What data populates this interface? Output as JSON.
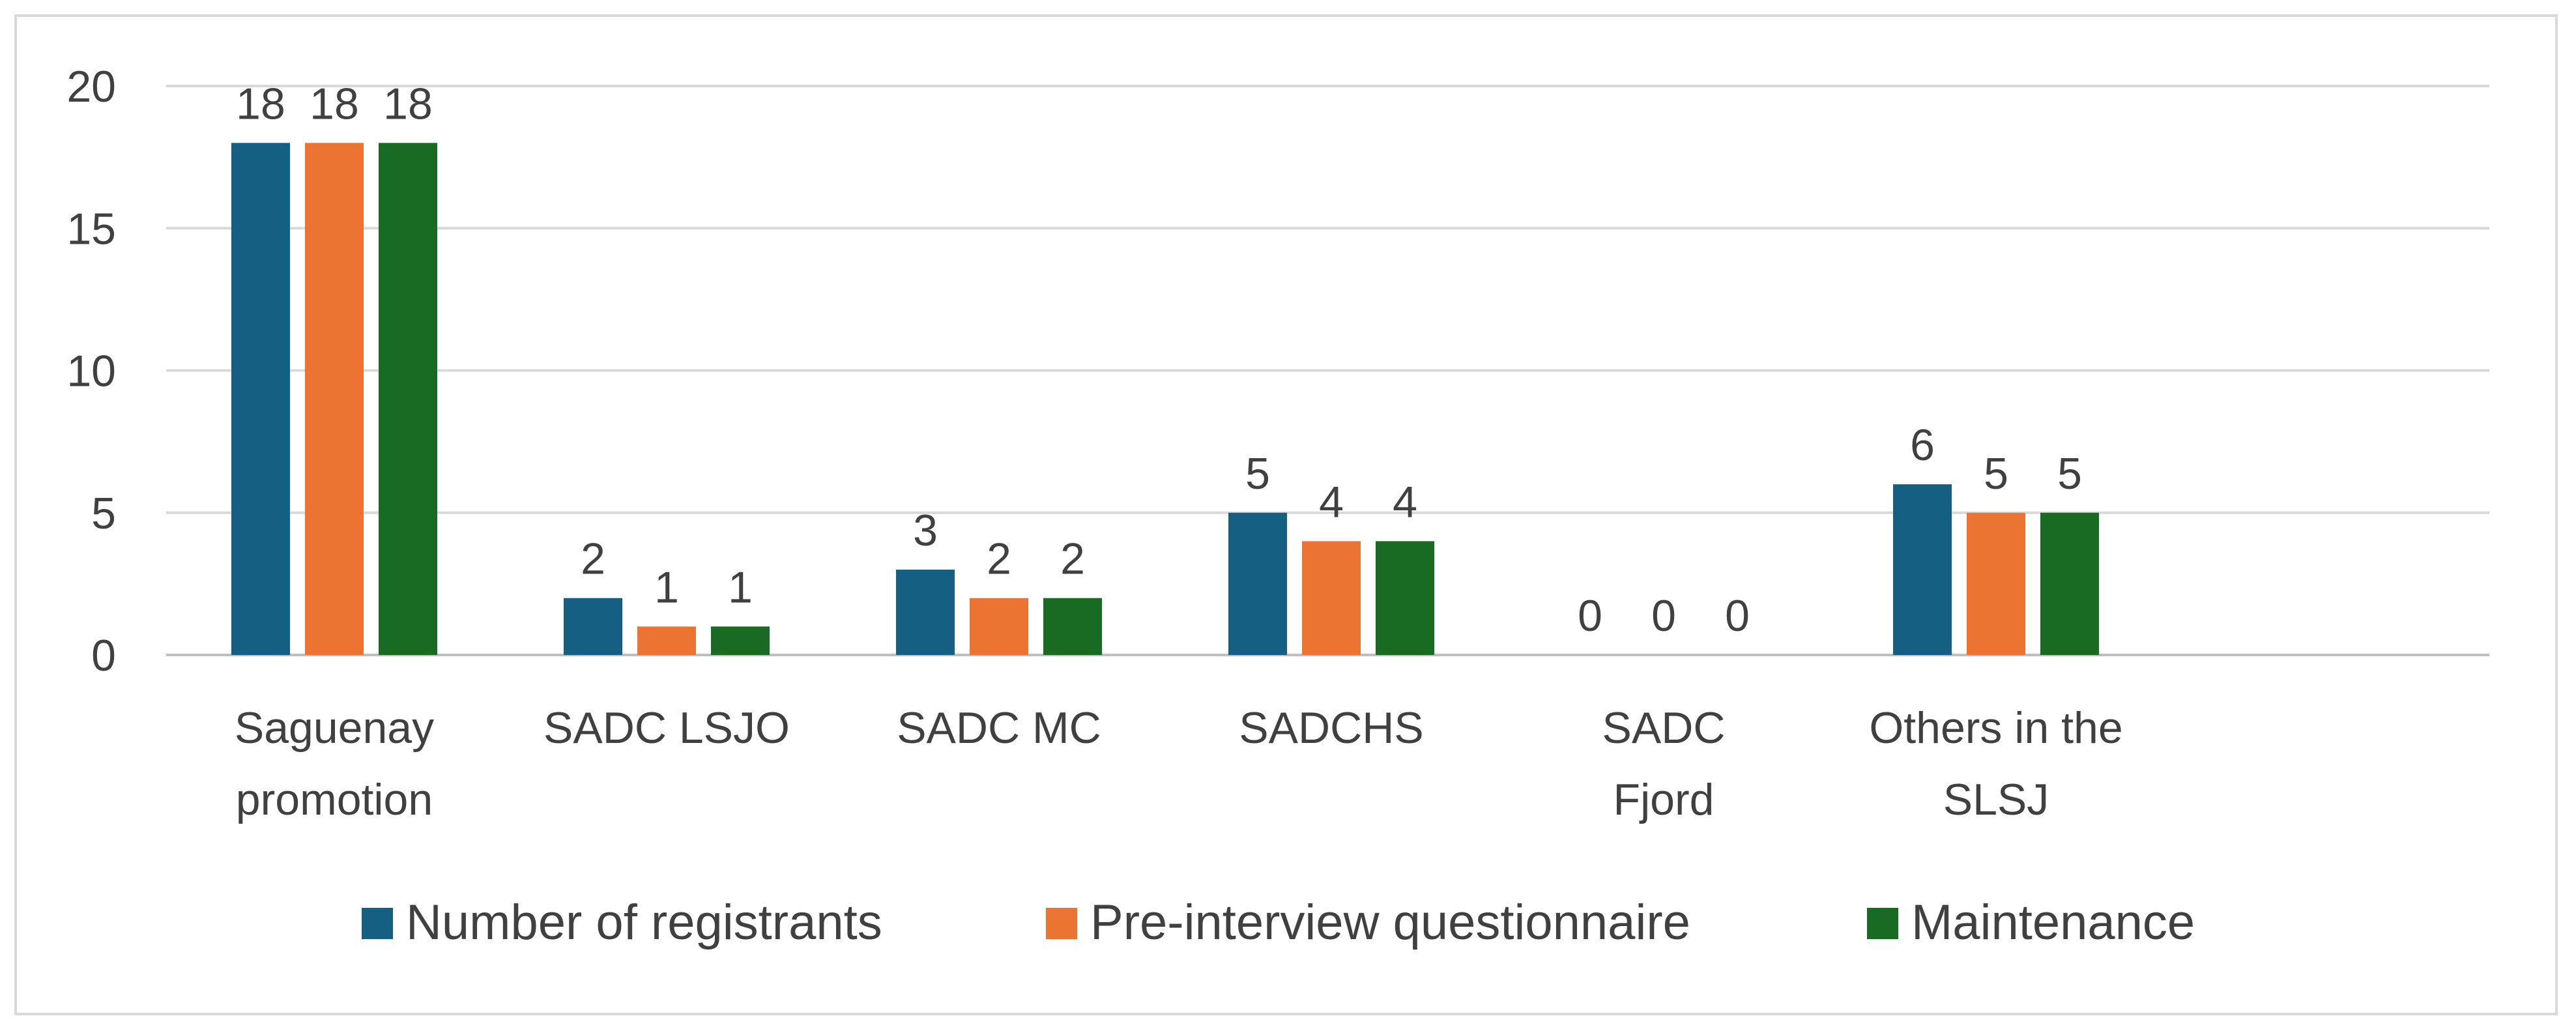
{
  "chart_data": {
    "type": "bar",
    "categories": [
      [
        "Saguenay",
        "promotion"
      ],
      [
        "SADC LSJO"
      ],
      [
        "SADC MC"
      ],
      [
        "SADCHS"
      ],
      [
        "SADC",
        "Fjord"
      ],
      [
        "Others in the",
        "SLSJ"
      ]
    ],
    "series": [
      {
        "name": "Number of registrants",
        "color": "#155f82",
        "values": [
          18,
          2,
          3,
          5,
          0,
          6
        ]
      },
      {
        "name": "Pre-interview questionnaire",
        "color": "#eb7432",
        "values": [
          18,
          1,
          2,
          4,
          0,
          5
        ]
      },
      {
        "name": "Maintenance",
        "color": "#196b24",
        "values": [
          18,
          1,
          2,
          4,
          0,
          5
        ]
      }
    ],
    "yticks": [
      0,
      5,
      10,
      15,
      20
    ],
    "ylim": [
      0,
      20
    ],
    "grid": true,
    "data_labels": true,
    "legend_position": "bottom"
  }
}
